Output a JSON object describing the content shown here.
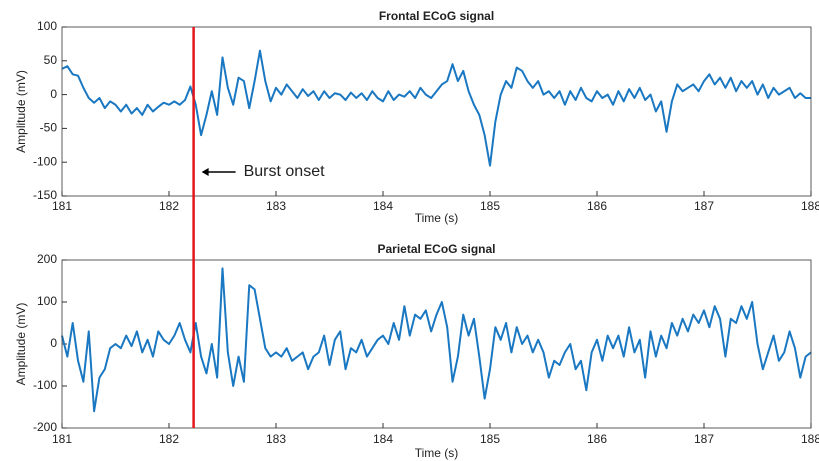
{
  "chart_data": [
    {
      "type": "line",
      "title": "Frontal ECoG signal",
      "xlabel": "Time (s)",
      "ylabel": "Amplitude (mV)",
      "annotation": {
        "text": "Burst onset",
        "x": 182.23,
        "color": "#e3161c"
      },
      "xlim": [
        181,
        188
      ],
      "xticks": [
        181,
        182,
        183,
        184,
        185,
        186,
        187,
        188
      ],
      "ylim": [
        -150,
        100
      ],
      "yticks": [
        -150,
        -100,
        -50,
        0,
        50,
        100
      ],
      "x": [
        181,
        181.05,
        181.1,
        181.15,
        181.2,
        181.25,
        181.3,
        181.35,
        181.4,
        181.45,
        181.5,
        181.55,
        181.6,
        181.65,
        181.7,
        181.75,
        181.8,
        181.85,
        181.9,
        181.95,
        182,
        182.05,
        182.1,
        182.15,
        182.2,
        182.25,
        182.3,
        182.35,
        182.4,
        182.45,
        182.5,
        182.55,
        182.6,
        182.65,
        182.7,
        182.75,
        182.8,
        182.85,
        182.9,
        182.95,
        183,
        183.05,
        183.1,
        183.15,
        183.2,
        183.25,
        183.3,
        183.35,
        183.4,
        183.45,
        183.5,
        183.55,
        183.6,
        183.65,
        183.7,
        183.75,
        183.8,
        183.85,
        183.9,
        183.95,
        184,
        184.05,
        184.1,
        184.15,
        184.2,
        184.25,
        184.3,
        184.35,
        184.4,
        184.45,
        184.5,
        184.55,
        184.6,
        184.65,
        184.7,
        184.75,
        184.8,
        184.85,
        184.9,
        184.95,
        185,
        185.05,
        185.1,
        185.15,
        185.2,
        185.25,
        185.3,
        185.35,
        185.4,
        185.45,
        185.5,
        185.55,
        185.6,
        185.65,
        185.7,
        185.75,
        185.8,
        185.85,
        185.9,
        185.95,
        186,
        186.05,
        186.1,
        186.15,
        186.2,
        186.25,
        186.3,
        186.35,
        186.4,
        186.45,
        186.5,
        186.55,
        186.6,
        186.65,
        186.7,
        186.75,
        186.8,
        186.85,
        186.9,
        186.95,
        187,
        187.05,
        187.1,
        187.15,
        187.2,
        187.25,
        187.3,
        187.35,
        187.4,
        187.45,
        187.5,
        187.55,
        187.6,
        187.65,
        187.7,
        187.75,
        187.8,
        187.85,
        187.9,
        187.95,
        188
      ],
      "series": [
        {
          "color": "#1a78c2",
          "values": [
            38,
            42,
            30,
            28,
            10,
            -5,
            -12,
            -5,
            -20,
            -10,
            -15,
            -25,
            -15,
            -28,
            -20,
            -30,
            -15,
            -25,
            -18,
            -12,
            -15,
            -10,
            -15,
            -8,
            12,
            -15,
            -60,
            -30,
            5,
            -30,
            55,
            10,
            -15,
            25,
            20,
            -20,
            20,
            65,
            20,
            -10,
            10,
            0,
            15,
            5,
            -5,
            8,
            -2,
            5,
            -8,
            5,
            -5,
            2,
            0,
            -8,
            3,
            -5,
            2,
            -8,
            5,
            -5,
            -10,
            5,
            -8,
            0,
            -3,
            5,
            -5,
            10,
            0,
            -5,
            5,
            15,
            20,
            45,
            20,
            35,
            5,
            -15,
            -30,
            -60,
            -105,
            -40,
            0,
            20,
            10,
            40,
            35,
            20,
            10,
            20,
            0,
            5,
            -5,
            5,
            -15,
            5,
            -8,
            10,
            -5,
            -10,
            5,
            -5,
            0,
            -15,
            5,
            -10,
            8,
            -5,
            10,
            -8,
            0,
            -25,
            -10,
            -55,
            -10,
            15,
            5,
            10,
            15,
            5,
            20,
            30,
            15,
            25,
            10,
            25,
            5,
            20,
            10,
            20,
            0,
            15,
            -5,
            10,
            0,
            5,
            10,
            -5,
            2,
            -5,
            -5
          ]
        }
      ]
    },
    {
      "type": "line",
      "title": "Parietal ECoG signal",
      "xlabel": "Time (s)",
      "ylabel": "Amplitude (mV)",
      "xlim": [
        181,
        188
      ],
      "xticks": [
        181,
        182,
        183,
        184,
        185,
        186,
        187,
        188
      ],
      "ylim": [
        -200,
        200
      ],
      "yticks": [
        -200,
        -100,
        0,
        100,
        200
      ],
      "x": [
        181,
        181.05,
        181.1,
        181.15,
        181.2,
        181.25,
        181.3,
        181.35,
        181.4,
        181.45,
        181.5,
        181.55,
        181.6,
        181.65,
        181.7,
        181.75,
        181.8,
        181.85,
        181.9,
        181.95,
        182,
        182.05,
        182.1,
        182.15,
        182.2,
        182.25,
        182.3,
        182.35,
        182.4,
        182.45,
        182.5,
        182.55,
        182.6,
        182.65,
        182.7,
        182.75,
        182.8,
        182.85,
        182.9,
        182.95,
        183,
        183.05,
        183.1,
        183.15,
        183.2,
        183.25,
        183.3,
        183.35,
        183.4,
        183.45,
        183.5,
        183.55,
        183.6,
        183.65,
        183.7,
        183.75,
        183.8,
        183.85,
        183.9,
        183.95,
        184,
        184.05,
        184.1,
        184.15,
        184.2,
        184.25,
        184.3,
        184.35,
        184.4,
        184.45,
        184.5,
        184.55,
        184.6,
        184.65,
        184.7,
        184.75,
        184.8,
        184.85,
        184.9,
        184.95,
        185,
        185.05,
        185.1,
        185.15,
        185.2,
        185.25,
        185.3,
        185.35,
        185.4,
        185.45,
        185.5,
        185.55,
        185.6,
        185.65,
        185.7,
        185.75,
        185.8,
        185.85,
        185.9,
        185.95,
        186,
        186.05,
        186.1,
        186.15,
        186.2,
        186.25,
        186.3,
        186.35,
        186.4,
        186.45,
        186.5,
        186.55,
        186.6,
        186.65,
        186.7,
        186.75,
        186.8,
        186.85,
        186.9,
        186.95,
        187,
        187.05,
        187.1,
        187.15,
        187.2,
        187.25,
        187.3,
        187.35,
        187.4,
        187.45,
        187.5,
        187.55,
        187.6,
        187.65,
        187.7,
        187.75,
        187.8,
        187.85,
        187.9,
        187.95,
        188
      ],
      "series": [
        {
          "color": "#1a78c2",
          "values": [
            20,
            -30,
            50,
            -40,
            -90,
            30,
            -160,
            -80,
            -60,
            -10,
            0,
            -10,
            20,
            -5,
            30,
            -20,
            10,
            -30,
            30,
            10,
            0,
            20,
            50,
            10,
            -20,
            50,
            -30,
            -70,
            0,
            -80,
            180,
            -20,
            -100,
            -30,
            -90,
            140,
            130,
            60,
            -10,
            -30,
            -20,
            -30,
            -10,
            -40,
            -30,
            -20,
            -60,
            -30,
            -20,
            20,
            -50,
            10,
            30,
            -60,
            -10,
            -20,
            10,
            -30,
            -10,
            10,
            20,
            0,
            50,
            10,
            90,
            20,
            70,
            60,
            80,
            30,
            70,
            100,
            40,
            -90,
            -30,
            70,
            20,
            60,
            -30,
            -130,
            -60,
            40,
            10,
            50,
            -20,
            40,
            0,
            20,
            -20,
            10,
            -20,
            -80,
            -40,
            -50,
            -20,
            0,
            -60,
            -40,
            -110,
            -20,
            10,
            -40,
            20,
            -10,
            20,
            -30,
            40,
            -20,
            10,
            -80,
            30,
            -30,
            20,
            -10,
            50,
            20,
            60,
            30,
            70,
            50,
            80,
            40,
            90,
            60,
            -30,
            60,
            50,
            90,
            60,
            100,
            0,
            -60,
            -20,
            20,
            -40,
            -20,
            30,
            -10,
            -80,
            -30,
            -20
          ]
        }
      ]
    }
  ]
}
